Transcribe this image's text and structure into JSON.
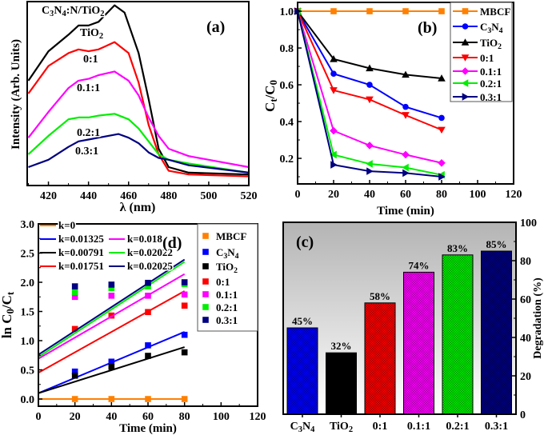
{
  "colors": {
    "MBCF": "#ff8000",
    "C3N4": "#0000ff",
    "TiO2": "#000000",
    "0:1": "#ff0000",
    "0.1:1": "#ff00ff",
    "0.2:1": "#00ee00",
    "0.3:1": "#000080"
  },
  "chart_data": [
    {
      "panel": "(a)",
      "type": "line",
      "xlabel": "λ (nm)",
      "ylabel": "Intensity (Arb. Units)",
      "xlim": [
        409.4,
        520
      ],
      "ylim": [
        0,
        100
      ],
      "xticks": [
        420,
        440,
        460,
        480,
        500,
        520
      ],
      "grid": false,
      "series": [
        {
          "name": "C3N4:N/TiO2",
          "color": "#000000",
          "x": [
            410,
            420,
            430,
            435,
            440,
            445,
            453,
            458,
            465,
            470,
            475,
            480,
            490,
            520
          ],
          "y": [
            57,
            73,
            82,
            87,
            87,
            89,
            98,
            94,
            72,
            47,
            20,
            10,
            7,
            6
          ]
        },
        {
          "name": "0:1",
          "color": "#ff0000",
          "x": [
            410,
            420,
            430,
            435,
            440,
            445,
            453,
            460,
            465,
            470,
            475,
            480,
            490,
            520
          ],
          "y": [
            50,
            65,
            72,
            74,
            73,
            74,
            78,
            72,
            56,
            33,
            17,
            8,
            6,
            5
          ]
        },
        {
          "name": "0.1:1",
          "color": "#ff00ff",
          "x": [
            410,
            420,
            430,
            435,
            440,
            445,
            453,
            460,
            465,
            470,
            475,
            480,
            490,
            500,
            520
          ],
          "y": [
            26,
            40,
            53,
            57,
            58,
            60,
            62,
            57,
            49,
            37,
            27,
            20,
            16,
            14,
            10
          ]
        },
        {
          "name": "0.2:1",
          "color": "#00ee00",
          "x": [
            410,
            420,
            430,
            435,
            440,
            445,
            453,
            460,
            465,
            470,
            475,
            480,
            490,
            520
          ],
          "y": [
            17,
            27,
            36,
            37,
            37,
            38,
            39,
            36,
            31,
            24,
            17,
            14,
            12,
            7
          ]
        },
        {
          "name": "0.3:1",
          "color": "#000080",
          "x": [
            410,
            420,
            430,
            435,
            440,
            445,
            455,
            460,
            465,
            470,
            475,
            480,
            490,
            520
          ],
          "y": [
            10,
            14,
            21,
            24,
            25,
            26,
            28,
            26,
            23,
            18,
            15,
            14,
            11,
            7
          ]
        }
      ],
      "annotations": [
        "C3N4:N/TiO2",
        "TiO2",
        "0:1",
        "0.1:1",
        "0.2:1",
        "0.3:1"
      ]
    },
    {
      "panel": "(b)",
      "type": "line",
      "xlabel": "Time (min)",
      "ylabel": "Ct/C0",
      "xlim": [
        0,
        120
      ],
      "ylim": [
        0.061,
        1.048
      ],
      "xticks": [
        0,
        20,
        40,
        60,
        80,
        100,
        120
      ],
      "yticks": [
        0.2,
        0.4,
        0.6,
        0.8,
        1.0
      ],
      "legend": "top-right",
      "x": [
        0,
        20,
        40,
        60,
        80
      ],
      "series": [
        {
          "name": "MBCF",
          "marker": "square",
          "values": [
            1,
            1,
            1,
            1,
            1
          ]
        },
        {
          "name": "C3N4",
          "marker": "circle",
          "values": [
            1,
            0.66,
            0.6,
            0.48,
            0.42
          ]
        },
        {
          "name": "TiO2",
          "marker": "triangle-up",
          "values": [
            1,
            0.74,
            0.69,
            0.655,
            0.635
          ]
        },
        {
          "name": "0:1",
          "marker": "triangle-down",
          "values": [
            1,
            0.57,
            0.52,
            0.435,
            0.355
          ]
        },
        {
          "name": "0.1:1",
          "marker": "diamond",
          "values": [
            1,
            0.35,
            0.27,
            0.22,
            0.175
          ]
        },
        {
          "name": "0.2:1",
          "marker": "triangle-left",
          "values": [
            1,
            0.22,
            0.17,
            0.15,
            0.11
          ]
        },
        {
          "name": "0.3:1",
          "marker": "triangle-right",
          "values": [
            1,
            0.165,
            0.13,
            0.12,
            0.1
          ]
        }
      ]
    },
    {
      "panel": "(d)",
      "type": "scatter",
      "xlabel": "Time (min)",
      "ylabel": "ln C0/Ct",
      "xlim": [
        0,
        120
      ],
      "ylim": [
        -0.123,
        3.0
      ],
      "xticks": [
        0,
        20,
        40,
        60,
        80,
        100,
        120
      ],
      "yticks": [
        0.0,
        0.5,
        1.0,
        1.5,
        2.0,
        2.5,
        3.0
      ],
      "legend": "right",
      "x": [
        20,
        40,
        60,
        80
      ],
      "series": [
        {
          "name": "MBCF",
          "values": [
            0,
            0,
            0,
            0
          ],
          "fit_label": "k=0",
          "fit": [
            0,
            0
          ]
        },
        {
          "name": "C3N4",
          "values": [
            0.47,
            0.64,
            0.92,
            1.1
          ],
          "fit_label": "k=0.01325",
          "fit": [
            0.1,
            1.15
          ]
        },
        {
          "name": "TiO2",
          "values": [
            0.4,
            0.55,
            0.74,
            0.8
          ],
          "fit_label": "k=0.00791",
          "fit": [
            0.1,
            0.89
          ]
        },
        {
          "name": "0:1",
          "values": [
            1.2,
            1.43,
            1.49,
            1.6
          ],
          "fit_label": "k=0.01751",
          "fit": [
            0.45,
            1.85
          ]
        },
        {
          "name": "0.1:1",
          "values": [
            1.75,
            1.77,
            1.77,
            1.79
          ],
          "fit_label": "k=0.018",
          "fit": [
            0.69,
            2.14
          ]
        },
        {
          "name": "0.2:1",
          "values": [
            1.83,
            1.9,
            1.93,
            1.97
          ],
          "fit_label": "k=0.02022",
          "fit": [
            0.72,
            2.35
          ]
        },
        {
          "name": "0.3:1",
          "values": [
            1.93,
            1.96,
            1.99,
            2.0
          ],
          "fit_label": "k=0.02025",
          "fit": [
            0.76,
            2.39
          ]
        }
      ],
      "fit_x": [
        0,
        80
      ]
    },
    {
      "panel": "(c)",
      "type": "bar",
      "ylabel": "Degradation (%)",
      "ylim": [
        0,
        100
      ],
      "yticks": [
        0,
        20,
        40,
        60,
        80,
        100
      ],
      "categories": [
        "C3N4",
        "TiO2",
        "0:1",
        "0.1:1",
        "0.2:1",
        "0.3:1"
      ],
      "values": [
        45,
        32,
        58,
        74,
        83,
        85
      ],
      "data_labels": [
        "45%",
        "32%",
        "58%",
        "74%",
        "83%",
        "85%"
      ]
    }
  ]
}
